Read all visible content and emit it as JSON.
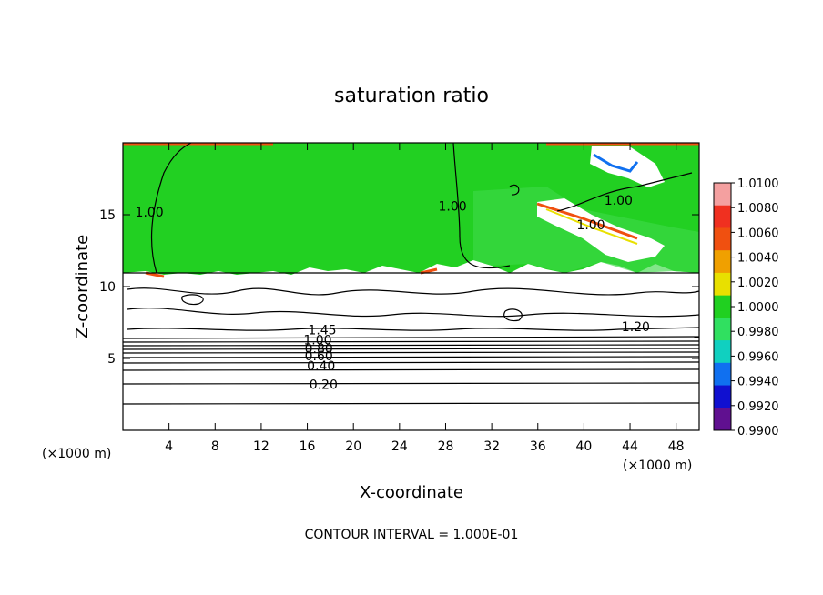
{
  "chart_data": {
    "type": "heatmap",
    "title": "saturation ratio",
    "xlabel": "X-coordinate",
    "ylabel": "Z-coordinate",
    "x_unit": "(×1000 m)",
    "z_unit": "(×1000 m)",
    "xlim": [
      0,
      50
    ],
    "ylim": [
      0,
      20
    ],
    "x_ticks": [
      4,
      8,
      12,
      16,
      20,
      24,
      28,
      32,
      36,
      40,
      44,
      48
    ],
    "y_ticks": [
      5,
      10,
      15
    ],
    "footer": "CONTOUR INTERVAL = 1.000E-01",
    "colorbar": {
      "labels": [
        "1.0100",
        "1.0080",
        "1.0060",
        "1.0040",
        "1.0020",
        "1.0000",
        "0.9980",
        "0.9960",
        "0.9940",
        "0.9920",
        "0.9900"
      ],
      "colors": [
        "#f4a0a0",
        "#f03020",
        "#f05010",
        "#f0a000",
        "#e8e000",
        "#20d020",
        "#30e060",
        "#10d0c0",
        "#1070f0",
        "#1010d0",
        "#601090"
      ]
    },
    "contour_labels": [
      {
        "text": "1.00",
        "x": 2.3,
        "y": 15.2
      },
      {
        "text": "1.00",
        "x": 28.6,
        "y": 15.6
      },
      {
        "text": "1.00",
        "x": 43.0,
        "y": 16.0
      },
      {
        "text": "1.00",
        "x": 40.6,
        "y": 14.3
      },
      {
        "text": "1.20",
        "x": 44.5,
        "y": 7.2
      },
      {
        "text": "1.45",
        "x": 17.3,
        "y": 7.0
      },
      {
        "text": "1.00",
        "x": 16.9,
        "y": 6.3
      },
      {
        "text": "0.80",
        "x": 17.0,
        "y": 5.7
      },
      {
        "text": "0.60",
        "x": 17.0,
        "y": 5.2
      },
      {
        "text": "0.40",
        "x": 17.2,
        "y": 4.5
      },
      {
        "text": "0.20",
        "x": 17.4,
        "y": 3.2
      }
    ]
  }
}
